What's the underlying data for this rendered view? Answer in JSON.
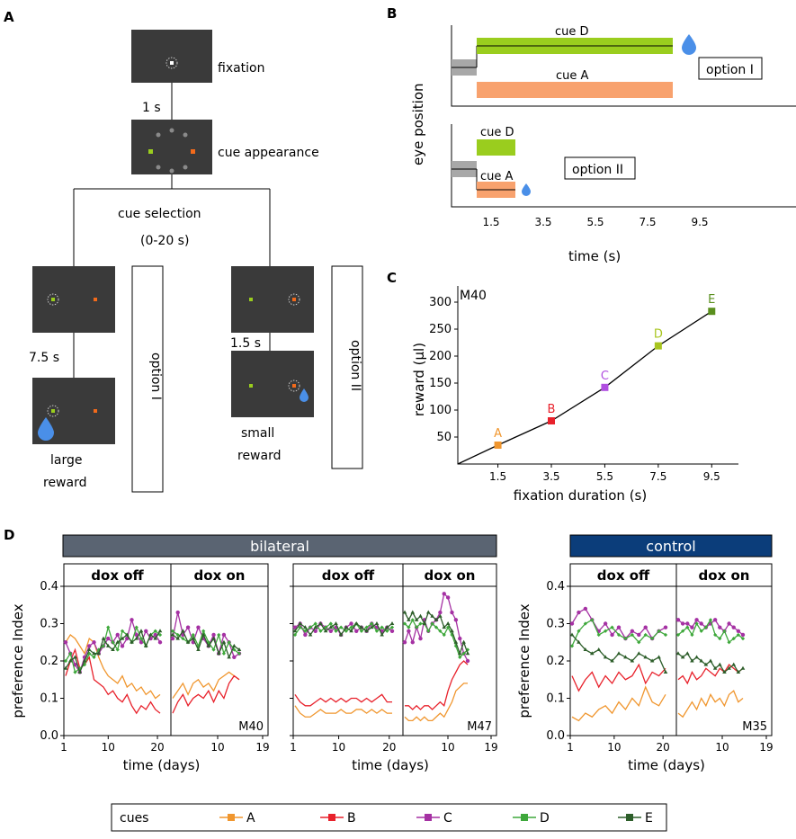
{
  "panel_labels": {
    "a": "A",
    "b": "B",
    "c": "C",
    "d": "D"
  },
  "colors": {
    "screen": "#3a3a3a",
    "cue_a": "#f0962e",
    "cue_b": "#e8212b",
    "cue_c": "#a531a3",
    "cue_d": "#3ea83b",
    "cue_d_bar": "#9acd1e",
    "cue_a_bar": "#f8a26e",
    "cue_e": "#2d5e2a",
    "drop": "#4a8fe8",
    "bilateral_header": "#5a6472",
    "control_header": "#0b3d7a"
  },
  "panel_a": {
    "fixation": "fixation",
    "delay_1s": "1 s",
    "cue_appearance": "cue appearance",
    "cue_selection": "cue selection",
    "cue_selection_range": "(0-20 s)",
    "delay_75s": "7.5 s",
    "delay_15s": "1.5 s",
    "option_1": "option I",
    "option_2": "option II",
    "large_reward": [
      "large",
      "reward"
    ],
    "small_reward": [
      "small",
      "reward"
    ]
  },
  "panel_b": {
    "ylabel": "eye position",
    "xlabel": "time (s)",
    "xticks": [
      "1.5",
      "3.5",
      "5.5",
      "7.5",
      "9.5"
    ],
    "top_cue_d": "cue D",
    "top_cue_a": "cue A",
    "top_option": "option I",
    "bottom_cue_d": "cue D",
    "bottom_cue_a": "cue A",
    "bottom_option": "option II"
  },
  "chart_data": [
    {
      "id": "C",
      "type": "line",
      "annotation": "M40",
      "xlabel": "fixation duration (s)",
      "ylabel": "reward (µl)",
      "x": [
        1.5,
        3.5,
        5.5,
        7.5,
        9.5
      ],
      "y": [
        35,
        80,
        142,
        219,
        283
      ],
      "point_labels": [
        "A",
        "B",
        "C",
        "D",
        "E"
      ],
      "point_colors": [
        "#f0962e",
        "#e8212b",
        "#b04ee0",
        "#a8c51e",
        "#5a8f1e"
      ],
      "xlim": [
        0,
        10.5
      ],
      "ylim": [
        0,
        330
      ],
      "yticks": [
        50,
        100,
        150,
        200,
        250,
        300
      ],
      "xticks": [
        1.5,
        3.5,
        5.5,
        7.5,
        9.5
      ]
    },
    {
      "id": "D",
      "type": "line",
      "ylabel": "preference Index",
      "xlabel": "time (days)",
      "yticks": [
        "0.0",
        "0.1",
        "0.2",
        "0.3",
        "0.4"
      ],
      "groups": [
        {
          "header": "bilateral",
          "subheaders": [
            "dox off",
            "dox on",
            "dox off",
            "dox on"
          ]
        },
        {
          "header": "control",
          "subheaders": [
            "dox off",
            "dox on"
          ]
        }
      ],
      "legend": {
        "title": "cues",
        "entries": [
          "A",
          "B",
          "C",
          "D",
          "E"
        ]
      },
      "plots": [
        {
          "monkey": "M40",
          "off": {
            "xticks": [
              "1",
              "10",
              "20"
            ],
            "A": [
              0.25,
              0.27,
              0.26,
              0.24,
              0.22,
              0.26,
              0.25,
              0.21,
              0.18,
              0.16,
              0.15,
              0.14,
              0.16,
              0.13,
              0.14,
              0.12,
              0.13,
              0.11,
              0.12,
              0.1,
              0.11
            ],
            "B": [
              0.16,
              0.2,
              0.23,
              0.18,
              0.19,
              0.21,
              0.15,
              0.14,
              0.13,
              0.11,
              0.12,
              0.1,
              0.09,
              0.11,
              0.08,
              0.06,
              0.08,
              0.07,
              0.09,
              0.07,
              0.06
            ],
            "C": [
              0.25,
              0.22,
              0.19,
              0.17,
              0.21,
              0.24,
              0.25,
              0.22,
              0.24,
              0.26,
              0.25,
              0.27,
              0.24,
              0.26,
              0.31,
              0.27,
              0.25,
              0.28,
              0.26,
              0.27,
              0.25
            ],
            "D": [
              0.2,
              0.22,
              0.17,
              0.18,
              0.19,
              0.22,
              0.21,
              0.23,
              0.24,
              0.29,
              0.25,
              0.23,
              0.28,
              0.27,
              0.25,
              0.29,
              0.26,
              0.24,
              0.27,
              0.28,
              0.27
            ],
            "E": [
              0.18,
              0.2,
              0.21,
              0.17,
              0.2,
              0.23,
              0.22,
              0.22,
              0.26,
              0.24,
              0.23,
              0.25,
              0.26,
              0.27,
              0.25,
              0.26,
              0.28,
              0.24,
              0.27,
              0.26,
              0.28
            ]
          },
          "on": {
            "xticks": [
              "1",
              "10",
              "19"
            ],
            "A": [
              0.1,
              0.12,
              0.14,
              0.11,
              0.14,
              0.15,
              0.13,
              0.14,
              0.12,
              0.15,
              0.16,
              0.17,
              0.16,
              0.15
            ],
            "B": [
              0.06,
              0.09,
              0.11,
              0.08,
              0.1,
              0.11,
              0.1,
              0.12,
              0.09,
              0.12,
              0.1,
              0.14,
              0.16,
              0.15
            ],
            "C": [
              0.26,
              0.33,
              0.27,
              0.29,
              0.25,
              0.29,
              0.26,
              0.24,
              0.27,
              0.22,
              0.27,
              0.25,
              0.21,
              0.22
            ],
            "D": [
              0.28,
              0.27,
              0.26,
              0.25,
              0.27,
              0.24,
              0.28,
              0.25,
              0.23,
              0.27,
              0.22,
              0.25,
              0.23,
              0.22
            ],
            "E": [
              0.27,
              0.26,
              0.28,
              0.25,
              0.26,
              0.23,
              0.27,
              0.24,
              0.26,
              0.22,
              0.25,
              0.21,
              0.24,
              0.23
            ]
          }
        },
        {
          "monkey": "M47",
          "off": {
            "xticks": [
              "1",
              "10",
              "20"
            ],
            "A": [
              0.08,
              0.06,
              0.05,
              0.05,
              0.06,
              0.07,
              0.06,
              0.06,
              0.06,
              0.07,
              0.06,
              0.06,
              0.07,
              0.07,
              0.06,
              0.07,
              0.06,
              0.07,
              0.06,
              0.06
            ],
            "B": [
              0.11,
              0.09,
              0.08,
              0.08,
              0.09,
              0.1,
              0.09,
              0.1,
              0.09,
              0.1,
              0.09,
              0.1,
              0.1,
              0.09,
              0.1,
              0.09,
              0.1,
              0.11,
              0.09,
              0.09
            ],
            "C": [
              0.29,
              0.3,
              0.27,
              0.29,
              0.28,
              0.3,
              0.29,
              0.28,
              0.29,
              0.27,
              0.29,
              0.3,
              0.28,
              0.29,
              0.28,
              0.3,
              0.29,
              0.28,
              0.29,
              0.28
            ],
            "D": [
              0.27,
              0.29,
              0.28,
              0.29,
              0.3,
              0.28,
              0.29,
              0.3,
              0.28,
              0.29,
              0.28,
              0.29,
              0.3,
              0.28,
              0.29,
              0.3,
              0.28,
              0.29,
              0.28,
              0.29
            ],
            "E": [
              0.28,
              0.3,
              0.29,
              0.27,
              0.29,
              0.3,
              0.28,
              0.29,
              0.3,
              0.27,
              0.29,
              0.28,
              0.3,
              0.29,
              0.28,
              0.29,
              0.3,
              0.27,
              0.29,
              0.3
            ]
          },
          "on": {
            "xticks": [
              "1",
              "10",
              "19"
            ],
            "A": [
              0.05,
              0.04,
              0.04,
              0.05,
              0.04,
              0.05,
              0.04,
              0.04,
              0.05,
              0.06,
              0.05,
              0.07,
              0.09,
              0.12,
              0.13,
              0.14,
              0.14
            ],
            "B": [
              0.08,
              0.08,
              0.07,
              0.08,
              0.07,
              0.08,
              0.08,
              0.07,
              0.08,
              0.09,
              0.08,
              0.12,
              0.15,
              0.17,
              0.19,
              0.2,
              0.19
            ],
            "C": [
              0.25,
              0.28,
              0.25,
              0.29,
              0.26,
              0.31,
              0.28,
              0.3,
              0.31,
              0.33,
              0.38,
              0.37,
              0.33,
              0.31,
              0.26,
              0.22,
              0.2
            ],
            "D": [
              0.3,
              0.29,
              0.31,
              0.29,
              0.3,
              0.3,
              0.28,
              0.3,
              0.29,
              0.28,
              0.27,
              0.29,
              0.27,
              0.24,
              0.21,
              0.22,
              0.23
            ],
            "E": [
              0.33,
              0.31,
              0.33,
              0.31,
              0.32,
              0.3,
              0.33,
              0.32,
              0.31,
              0.32,
              0.29,
              0.3,
              0.28,
              0.25,
              0.22,
              0.25,
              0.22
            ]
          }
        },
        {
          "monkey": "M35",
          "off": {
            "xticks": [
              "1",
              "10",
              "20"
            ],
            "A": [
              0.05,
              0.04,
              0.06,
              0.05,
              0.07,
              0.08,
              0.06,
              0.09,
              0.07,
              0.1,
              0.08,
              0.13,
              0.09,
              0.08,
              0.11
            ],
            "B": [
              0.16,
              0.12,
              0.15,
              0.17,
              0.13,
              0.16,
              0.14,
              0.17,
              0.15,
              0.16,
              0.19,
              0.14,
              0.17,
              0.16,
              0.18
            ],
            "C": [
              0.3,
              0.33,
              0.34,
              0.31,
              0.28,
              0.3,
              0.27,
              0.29,
              0.26,
              0.28,
              0.27,
              0.29,
              0.26,
              0.28,
              0.29
            ],
            "D": [
              0.24,
              0.28,
              0.3,
              0.31,
              0.27,
              0.28,
              0.29,
              0.27,
              0.26,
              0.27,
              0.25,
              0.27,
              0.26,
              0.28,
              0.27
            ],
            "E": [
              0.27,
              0.25,
              0.23,
              0.22,
              0.23,
              0.21,
              0.2,
              0.22,
              0.21,
              0.2,
              0.22,
              0.21,
              0.2,
              0.21,
              0.17
            ]
          },
          "on": {
            "xticks": [
              "1",
              "10",
              "19"
            ],
            "A": [
              0.06,
              0.05,
              0.07,
              0.09,
              0.07,
              0.1,
              0.08,
              0.11,
              0.09,
              0.1,
              0.08,
              0.11,
              0.12,
              0.09,
              0.1
            ],
            "B": [
              0.15,
              0.16,
              0.14,
              0.17,
              0.15,
              0.16,
              0.18,
              0.17,
              0.16,
              0.18,
              0.17,
              0.19,
              0.18,
              0.17,
              0.18
            ],
            "C": [
              0.31,
              0.3,
              0.3,
              0.29,
              0.31,
              0.3,
              0.29,
              0.3,
              0.31,
              0.29,
              0.28,
              0.3,
              0.29,
              0.28,
              0.27
            ],
            "D": [
              0.27,
              0.28,
              0.29,
              0.27,
              0.3,
              0.28,
              0.29,
              0.31,
              0.27,
              0.26,
              0.28,
              0.25,
              0.26,
              0.27,
              0.26
            ],
            "E": [
              0.22,
              0.21,
              0.22,
              0.2,
              0.21,
              0.2,
              0.19,
              0.2,
              0.18,
              0.19,
              0.17,
              0.18,
              0.19,
              0.17,
              0.18
            ]
          }
        }
      ]
    }
  ]
}
